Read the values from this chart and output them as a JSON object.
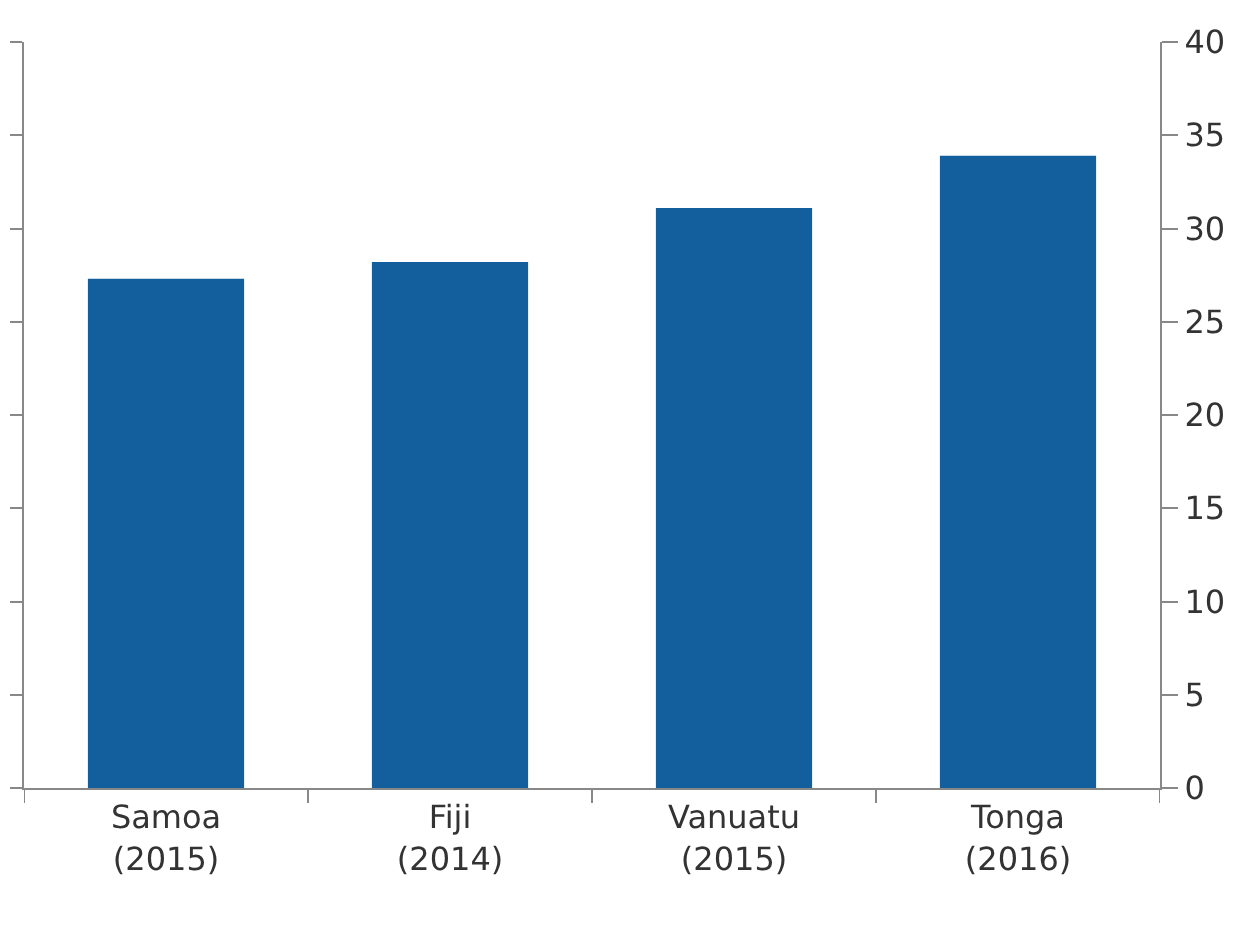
{
  "chart_data": {
    "type": "bar",
    "categories": [
      "Samoa\n(2015)",
      "Fiji\n(2014)",
      "Vanuatu\n(2015)",
      "Tonga\n(2016)"
    ],
    "values": [
      27.3,
      28.2,
      31.1,
      33.9
    ],
    "color": "#135f9e",
    "ylim": [
      0,
      40
    ],
    "yticks": [
      0,
      5,
      10,
      15,
      20,
      25,
      30,
      35,
      40
    ],
    "grid": false,
    "legend": false
  }
}
